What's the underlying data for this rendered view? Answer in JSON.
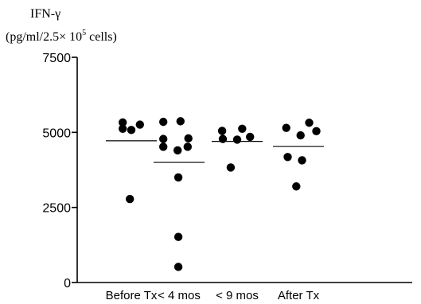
{
  "chart_data": {
    "type": "scatter",
    "ylabel_line1": "IFN-γ",
    "ylabel_line2": "(pg/ml/2.5× 10",
    "ylabel_sup": "5",
    "ylabel_line2_end": " cells)",
    "ylim": [
      0,
      7500
    ],
    "yticks": [
      {
        "value": 0,
        "label": "0"
      },
      {
        "value": 2500,
        "label": "2500"
      },
      {
        "value": 5000,
        "label": "5000"
      },
      {
        "value": 7500,
        "label": "7500"
      }
    ],
    "categories": [
      "Before Tx",
      "< 4 mos",
      "< 9 mos",
      "After Tx"
    ],
    "series": [
      {
        "category": "Before Tx",
        "mean": 4720,
        "points": [
          [
            -0.12,
            5330
          ],
          [
            -0.12,
            5120
          ],
          [
            0.0,
            5080
          ],
          [
            0.12,
            5260
          ],
          [
            -0.02,
            2780
          ]
        ]
      },
      {
        "category": "< 4 mos",
        "mean": 4000,
        "points": [
          [
            -0.22,
            5350
          ],
          [
            0.02,
            5370
          ],
          [
            -0.22,
            4780
          ],
          [
            0.13,
            4800
          ],
          [
            -0.22,
            4520
          ],
          [
            0.12,
            4520
          ],
          [
            -0.02,
            4400
          ],
          [
            -0.01,
            3500
          ],
          [
            -0.01,
            1520
          ],
          [
            -0.01,
            520
          ]
        ]
      },
      {
        "category": "< 9 mos",
        "mean": 4700,
        "points": [
          [
            -0.21,
            5050
          ],
          [
            0.07,
            5120
          ],
          [
            -0.2,
            4780
          ],
          [
            0.0,
            4760
          ],
          [
            0.18,
            4850
          ],
          [
            -0.09,
            3830
          ]
        ]
      },
      {
        "category": "After Tx",
        "mean": 4530,
        "points": [
          [
            -0.17,
            5150
          ],
          [
            0.15,
            5320
          ],
          [
            0.03,
            4900
          ],
          [
            0.25,
            5040
          ],
          [
            -0.15,
            4180
          ],
          [
            0.05,
            4070
          ],
          [
            -0.03,
            3200
          ]
        ]
      }
    ],
    "grid": false,
    "legend": "none"
  }
}
